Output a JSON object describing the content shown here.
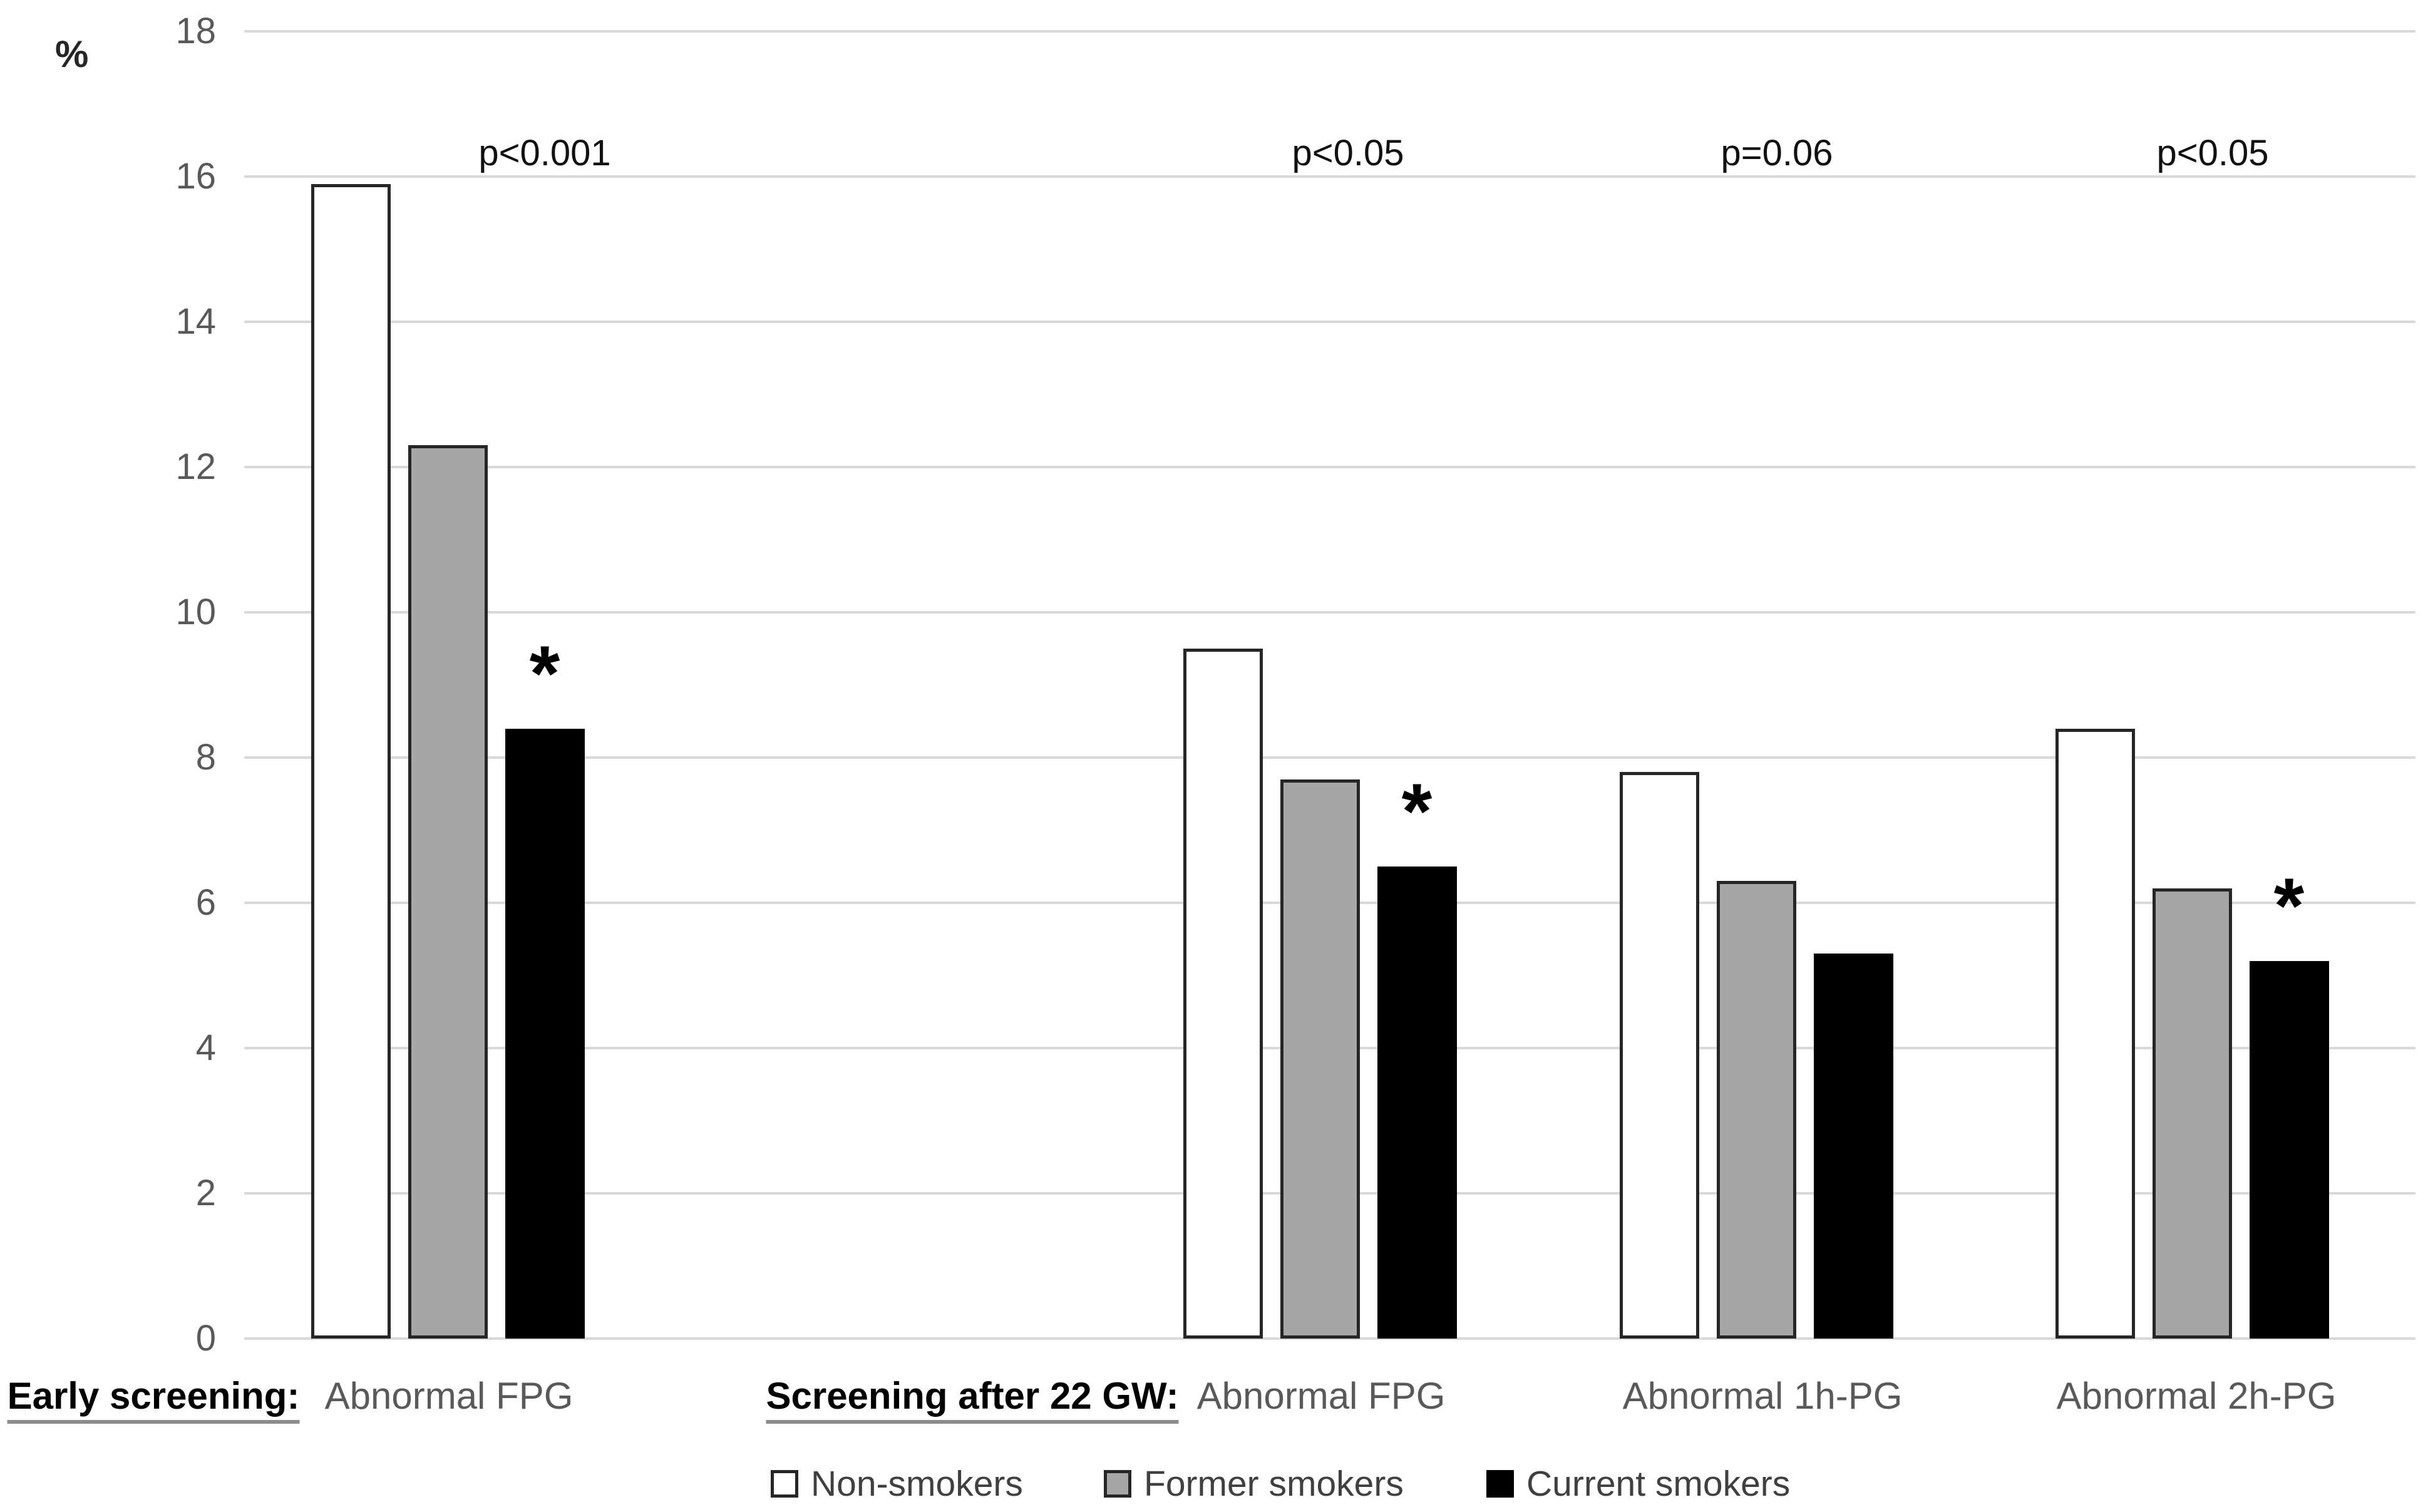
{
  "y_axis": {
    "unit_label": "%",
    "tick_labels": [
      "18",
      "16",
      "14",
      "12",
      "10",
      "8",
      "6",
      "4",
      "2",
      "0"
    ]
  },
  "x_labels": [
    {
      "text": "Early screening:",
      "emphasis": true
    },
    {
      "text": "Abnormal FPG",
      "emphasis": false
    },
    {
      "text": "Screening after 22 GW:",
      "emphasis": true
    },
    {
      "text": "Abnormal FPG",
      "emphasis": false
    },
    {
      "text": "Abnormal 1h-PG",
      "emphasis": false
    },
    {
      "text": "Abnormal 2h-PG",
      "emphasis": false
    }
  ],
  "legend": [
    {
      "label": "Non-smokers",
      "fill": "#ffffff",
      "border": "#262626"
    },
    {
      "label": "Former smokers",
      "fill": "#a6a6a6",
      "border": "#262626"
    },
    {
      "label": "Current smokers",
      "fill": "#000000",
      "border": "#000000"
    }
  ],
  "colors": {
    "gridline": "#d9d9d9",
    "bar_border": "#262626",
    "axis_text": "#595959",
    "annotation_text": "#111111"
  },
  "chart_data": {
    "type": "bar",
    "title": "",
    "xlabel": "",
    "ylabel": "%",
    "ylim": [
      0,
      18
    ],
    "yticks": [
      0,
      2,
      4,
      6,
      8,
      10,
      12,
      14,
      16,
      18
    ],
    "grid": true,
    "legend_position": "bottom",
    "categories": [
      "Early screening: Abnormal FPG",
      "Screening after 22 GW: Abnormal FPG",
      "Abnormal 1h-PG",
      "Abnormal 2h-PG"
    ],
    "series": [
      {
        "name": "Non-smokers",
        "fill": "#ffffff",
        "values": [
          15.9,
          9.5,
          7.8,
          8.4
        ]
      },
      {
        "name": "Former smokers",
        "fill": "#a6a6a6",
        "values": [
          12.3,
          7.7,
          6.3,
          6.2
        ]
      },
      {
        "name": "Current smokers",
        "fill": "#000000",
        "values": [
          8.4,
          6.5,
          5.3,
          5.2
        ]
      }
    ],
    "p_value_labels": [
      "p<0.001",
      "p<0.05",
      "p=0.06",
      "p<0.05"
    ],
    "significance_markers": [
      {
        "category_index": 0,
        "series": "Current smokers",
        "marker": "*"
      },
      {
        "category_index": 1,
        "series": "Current smokers",
        "marker": "*"
      },
      {
        "category_index": 3,
        "series": "Current smokers",
        "marker": "*"
      }
    ]
  }
}
